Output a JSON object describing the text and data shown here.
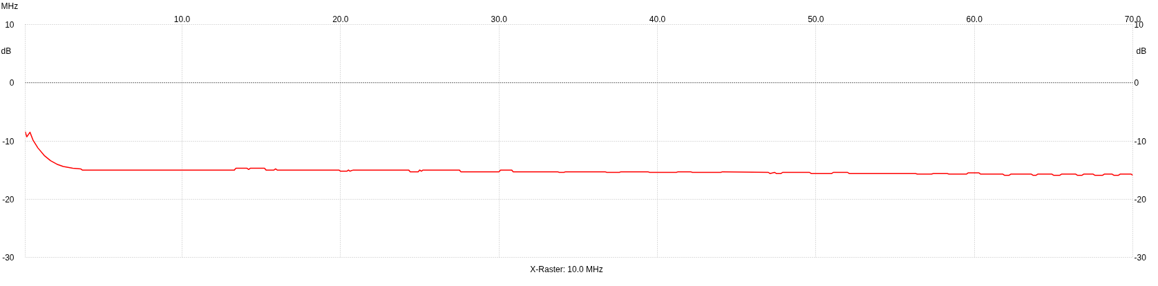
{
  "chart_data": {
    "type": "line",
    "xlabel": "MHz",
    "ylabel": "dB",
    "y2label": "dB",
    "annotations": [
      "X-Raster: 10.0 MHz"
    ],
    "xlim": [
      0.1,
      70
    ],
    "xticks": [
      {
        "value": 10,
        "label": "10.0"
      },
      {
        "value": 20,
        "label": "20.0"
      },
      {
        "value": 30,
        "label": "30.0"
      },
      {
        "value": 40,
        "label": "40.0"
      },
      {
        "value": 50,
        "label": "50.0"
      },
      {
        "value": 60,
        "label": "60.0"
      },
      {
        "value": 70,
        "label": "70.0"
      }
    ],
    "ylim": [
      -30,
      10
    ],
    "yticks": [
      -30,
      -20,
      -10,
      0,
      10
    ],
    "y2lim": [
      -30,
      10
    ],
    "y2ticks": [
      -30,
      -20,
      -10,
      0,
      10
    ],
    "grid": true,
    "line_style": "solid",
    "ref_lines": [
      {
        "axis": "y",
        "value": 0,
        "color": "#000000",
        "line_style": "dotted"
      }
    ],
    "series": [
      {
        "color": "#ff0000",
        "x": [
          0.1,
          0.2,
          0.4,
          0.6,
          0.9,
          1.3,
          1.7,
          2.1,
          2.5,
          3.1,
          3.6,
          3.7,
          13.3,
          13.4,
          14.1,
          14.2,
          14.3,
          15.2,
          15.3,
          15.8,
          15.9,
          16.0,
          19.9,
          20.0,
          20.4,
          20.5,
          20.6,
          20.8,
          24.3,
          24.4,
          24.9,
          25.0,
          25.1,
          25.2,
          27.5,
          27.6,
          30.0,
          30.1,
          30.8,
          30.9,
          33.7,
          33.8,
          34.1,
          34.2,
          36.7,
          36.8,
          37.6,
          37.7,
          39.4,
          39.5,
          41.2,
          41.3,
          42.1,
          42.2,
          44.0,
          44.1,
          47.0,
          47.1,
          47.4,
          47.5,
          47.8,
          47.9,
          49.6,
          49.7,
          51.0,
          51.1,
          52.0,
          52.1,
          56.3,
          56.4,
          57.3,
          57.4,
          58.3,
          58.4,
          59.5,
          59.6,
          60.3,
          60.4,
          61.8,
          61.9,
          62.2,
          62.3,
          63.6,
          63.7,
          63.9,
          64.0,
          64.9,
          65.0,
          65.4,
          65.5,
          66.4,
          66.5,
          66.8,
          66.9,
          67.5,
          67.6,
          68.1,
          68.2,
          68.7,
          68.8,
          69.1,
          69.2,
          69.9,
          70.0
        ],
        "values": [
          -8.4,
          -9.3,
          -8.5,
          -9.9,
          -11.2,
          -12.5,
          -13.4,
          -14.0,
          -14.4,
          -14.7,
          -14.8,
          -15.0,
          -15.0,
          -14.7,
          -14.7,
          -14.9,
          -14.7,
          -14.7,
          -15.0,
          -15.0,
          -14.8,
          -15.0,
          -15.0,
          -15.2,
          -15.2,
          -15.0,
          -15.2,
          -15.0,
          -15.0,
          -15.3,
          -15.3,
          -15.0,
          -15.2,
          -15.0,
          -15.0,
          -15.3,
          -15.3,
          -15.0,
          -15.0,
          -15.3,
          -15.3,
          -15.4,
          -15.4,
          -15.3,
          -15.3,
          -15.4,
          -15.4,
          -15.3,
          -15.3,
          -15.4,
          -15.4,
          -15.3,
          -15.3,
          -15.4,
          -15.4,
          -15.3,
          -15.4,
          -15.6,
          -15.4,
          -15.6,
          -15.6,
          -15.4,
          -15.4,
          -15.6,
          -15.6,
          -15.4,
          -15.4,
          -15.6,
          -15.6,
          -15.7,
          -15.7,
          -15.6,
          -15.6,
          -15.7,
          -15.7,
          -15.5,
          -15.5,
          -15.7,
          -15.7,
          -15.9,
          -15.9,
          -15.7,
          -15.7,
          -15.9,
          -15.9,
          -15.7,
          -15.7,
          -15.9,
          -15.9,
          -15.7,
          -15.7,
          -15.9,
          -15.9,
          -15.7,
          -15.7,
          -15.9,
          -15.9,
          -15.7,
          -15.7,
          -15.9,
          -15.9,
          -15.7,
          -15.7,
          -15.9
        ]
      }
    ]
  }
}
